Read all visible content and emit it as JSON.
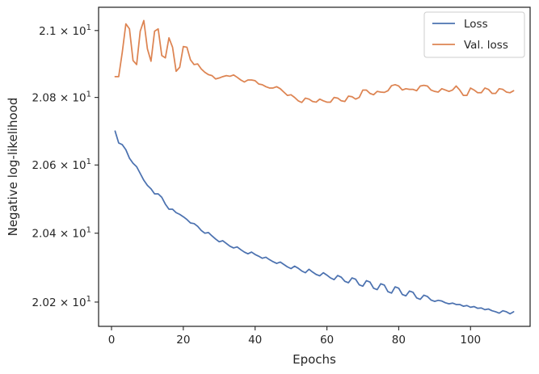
{
  "chart_data": {
    "type": "line",
    "xlabel": "Epochs",
    "ylabel": "Negative log-likelihood",
    "xlim": [
      -3.6,
      116.6
    ],
    "ylim": [
      20.13,
      21.07
    ],
    "yscale": "log",
    "grid": false,
    "legend_position": "top-right",
    "x_ticks": [
      0,
      20,
      40,
      60,
      80,
      100
    ],
    "x_tick_labels": [
      "0",
      "20",
      "40",
      "60",
      "80",
      "100"
    ],
    "y_ticks": [
      20.2,
      20.4,
      20.6,
      20.8,
      21.0
    ],
    "y_tick_labels": [
      {
        "mantissa": "2.02",
        "sep": " × 10",
        "exp": "1"
      },
      {
        "mantissa": "2.04",
        "sep": " × 10",
        "exp": "1"
      },
      {
        "mantissa": "2.06",
        "sep": " × 10",
        "exp": "1"
      },
      {
        "mantissa": "2.08",
        "sep": " × 10",
        "exp": "1"
      },
      {
        "mantissa": "2.1",
        "sep": " × 10",
        "exp": "1"
      }
    ],
    "series": [
      {
        "name": "Loss",
        "color": "#4c72b0",
        "x": [
          1,
          2,
          3,
          4,
          5,
          6,
          7,
          8,
          9,
          10,
          11,
          12,
          13,
          14,
          15,
          16,
          17,
          18,
          19,
          20,
          21,
          22,
          23,
          24,
          25,
          26,
          27,
          28,
          29,
          30,
          31,
          32,
          33,
          34,
          35,
          36,
          37,
          38,
          39,
          40,
          41,
          42,
          43,
          44,
          45,
          46,
          47,
          48,
          49,
          50,
          51,
          52,
          53,
          54,
          55,
          56,
          57,
          58,
          59,
          60,
          61,
          62,
          63,
          64,
          65,
          66,
          67,
          68,
          69,
          70,
          71,
          72,
          73,
          74,
          75,
          76,
          77,
          78,
          79,
          80,
          81,
          82,
          83,
          84,
          85,
          86,
          87,
          88,
          89,
          90,
          91,
          92,
          93,
          94,
          95,
          96,
          97,
          98,
          99,
          100,
          101,
          102,
          103,
          104,
          105,
          106,
          107,
          108,
          109,
          110,
          111,
          112
        ],
        "values": [
          20.7,
          20.665,
          20.66,
          20.645,
          20.62,
          20.605,
          20.595,
          20.575,
          20.555,
          20.54,
          20.53,
          20.515,
          20.515,
          20.505,
          20.485,
          20.47,
          20.47,
          20.46,
          20.455,
          20.448,
          20.44,
          20.43,
          20.428,
          20.42,
          20.408,
          20.4,
          20.402,
          20.392,
          20.383,
          20.375,
          20.378,
          20.37,
          20.362,
          20.357,
          20.36,
          20.352,
          20.345,
          20.34,
          20.345,
          20.338,
          20.333,
          20.327,
          20.33,
          20.323,
          20.317,
          20.312,
          20.316,
          20.309,
          20.302,
          20.297,
          20.304,
          20.298,
          20.29,
          20.285,
          20.295,
          20.287,
          20.28,
          20.276,
          20.285,
          20.278,
          20.27,
          20.265,
          20.277,
          20.272,
          20.26,
          20.256,
          20.27,
          20.266,
          20.25,
          20.246,
          20.262,
          20.258,
          20.24,
          20.236,
          20.253,
          20.249,
          20.23,
          20.226,
          20.244,
          20.24,
          20.222,
          20.218,
          20.232,
          20.228,
          20.212,
          20.208,
          20.22,
          20.216,
          20.206,
          20.202,
          20.205,
          20.203,
          20.198,
          20.195,
          20.197,
          20.193,
          20.193,
          20.188,
          20.19,
          20.185,
          20.187,
          20.182,
          20.183,
          20.178,
          20.18,
          20.175,
          20.172,
          20.168,
          20.175,
          20.172,
          20.166,
          20.172
        ]
      },
      {
        "name": "Val. loss",
        "color": "#dd8452",
        "x": [
          1,
          2,
          3,
          4,
          5,
          6,
          7,
          8,
          9,
          10,
          11,
          12,
          13,
          14,
          15,
          16,
          17,
          18,
          19,
          20,
          21,
          22,
          23,
          24,
          25,
          26,
          27,
          28,
          29,
          30,
          31,
          32,
          33,
          34,
          35,
          36,
          37,
          38,
          39,
          40,
          41,
          42,
          43,
          44,
          45,
          46,
          47,
          48,
          49,
          50,
          51,
          52,
          53,
          54,
          55,
          56,
          57,
          58,
          59,
          60,
          61,
          62,
          63,
          64,
          65,
          66,
          67,
          68,
          69,
          70,
          71,
          72,
          73,
          74,
          75,
          76,
          77,
          78,
          79,
          80,
          81,
          82,
          83,
          84,
          85,
          86,
          87,
          88,
          89,
          90,
          91,
          92,
          93,
          94,
          95,
          96,
          97,
          98,
          99,
          100,
          101,
          102,
          103,
          104,
          105,
          106,
          107,
          108,
          109,
          110,
          111,
          112
        ],
        "values": [
          20.862,
          20.862,
          20.935,
          21.02,
          21.005,
          20.91,
          20.898,
          20.998,
          21.03,
          20.945,
          20.908,
          20.998,
          21.005,
          20.925,
          20.918,
          20.978,
          20.95,
          20.878,
          20.89,
          20.952,
          20.95,
          20.912,
          20.898,
          20.9,
          20.885,
          20.875,
          20.868,
          20.865,
          20.855,
          20.858,
          20.862,
          20.865,
          20.863,
          20.867,
          20.86,
          20.852,
          20.846,
          20.852,
          20.852,
          20.85,
          20.84,
          20.838,
          20.832,
          20.828,
          20.828,
          20.832,
          20.826,
          20.816,
          20.806,
          20.808,
          20.8,
          20.79,
          20.785,
          20.798,
          20.795,
          20.788,
          20.786,
          20.795,
          20.79,
          20.786,
          20.786,
          20.8,
          20.798,
          20.79,
          20.788,
          20.804,
          20.802,
          20.795,
          20.8,
          20.822,
          20.822,
          20.812,
          20.808,
          20.818,
          20.816,
          20.815,
          20.82,
          20.835,
          20.838,
          20.834,
          20.822,
          20.826,
          20.824,
          20.824,
          20.82,
          20.834,
          20.836,
          20.834,
          20.822,
          20.818,
          20.816,
          20.826,
          20.822,
          20.818,
          20.822,
          20.834,
          20.822,
          20.806,
          20.806,
          20.828,
          20.822,
          20.814,
          20.814,
          20.828,
          20.824,
          20.812,
          20.812,
          20.826,
          20.824,
          20.816,
          20.814,
          20.82
        ]
      }
    ]
  }
}
